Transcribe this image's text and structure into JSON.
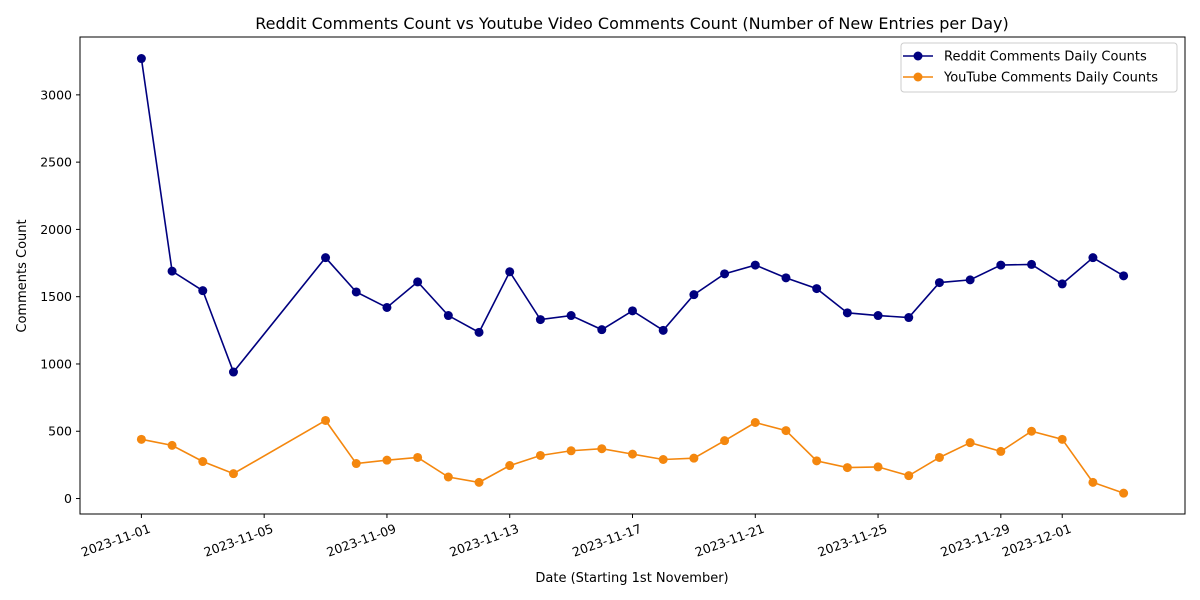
{
  "chart_data": {
    "type": "line",
    "title": "Reddit Comments Count vs Youtube Video Comments Count (Number of New Entries per Day)",
    "xlabel": "Date (Starting 1st November)",
    "ylabel": "Comments Count",
    "x_ticks": [
      "2023-11-01",
      "2023-11-05",
      "2023-11-09",
      "2023-11-13",
      "2023-11-17",
      "2023-11-21",
      "2023-11-25",
      "2023-11-29",
      "2023-12-01"
    ],
    "y_ticks": [
      0,
      500,
      1000,
      1500,
      2000,
      2500,
      3000
    ],
    "xlim": [
      "2023-10-30",
      "2023-12-05"
    ],
    "ylim": [
      -115,
      3430
    ],
    "grid": false,
    "legend_position": "top-right",
    "x": [
      "2023-11-01",
      "2023-11-02",
      "2023-11-03",
      "2023-11-04",
      "2023-11-07",
      "2023-11-08",
      "2023-11-09",
      "2023-11-10",
      "2023-11-11",
      "2023-11-12",
      "2023-11-13",
      "2023-11-14",
      "2023-11-15",
      "2023-11-16",
      "2023-11-17",
      "2023-11-18",
      "2023-11-19",
      "2023-11-20",
      "2023-11-21",
      "2023-11-22",
      "2023-11-23",
      "2023-11-24",
      "2023-11-25",
      "2023-11-26",
      "2023-11-27",
      "2023-11-28",
      "2023-11-29",
      "2023-11-30",
      "2023-12-01",
      "2023-12-02",
      "2023-12-03"
    ],
    "series": [
      {
        "name": "Reddit Comments Daily Counts",
        "color": "#00007f",
        "values": [
          3270,
          1690,
          1545,
          940,
          1790,
          1535,
          1420,
          1610,
          1360,
          1235,
          1685,
          1330,
          1360,
          1255,
          1395,
          1250,
          1515,
          1670,
          1735,
          1640,
          1560,
          1380,
          1360,
          1345,
          1605,
          1625,
          1735,
          1740,
          1595,
          1790,
          1655
        ]
      },
      {
        "name": "YouTube Comments Daily Counts",
        "color": "#f4870e",
        "values": [
          440,
          395,
          275,
          185,
          580,
          260,
          285,
          305,
          160,
          120,
          245,
          320,
          355,
          370,
          330,
          290,
          300,
          430,
          565,
          505,
          280,
          230,
          235,
          170,
          305,
          415,
          350,
          500,
          440,
          120,
          40
        ]
      }
    ]
  }
}
